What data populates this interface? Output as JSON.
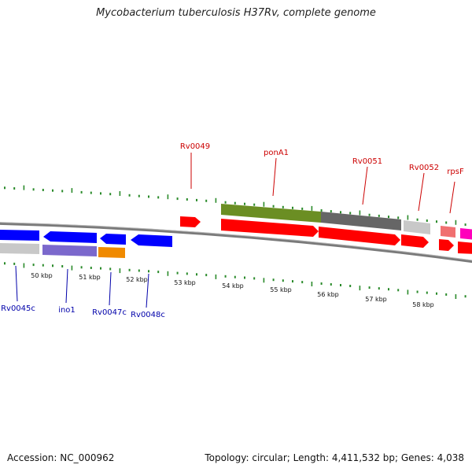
{
  "title": "Mycobacterium tuberculosis H37Rv, complete genome",
  "footer": {
    "accession": "Accession: NC_000962",
    "summary": "Topology: circular; Length: 4,411,532 bp; Genes: 4,038"
  },
  "colors": {
    "background": "#ffffff",
    "backbone": "#808080",
    "tick": "#2a8a2a",
    "forward_label": "#cc0000",
    "reverse_label": "#0000aa",
    "forward_gene": "#ff0000",
    "reverse_gene": "#0000ff"
  },
  "scale_labels": [
    "50 kbp",
    "51 kbp",
    "52 kbp",
    "53 kbp",
    "54 kbp",
    "55 kbp",
    "56 kbp",
    "57 kbp",
    "58 kbp"
  ],
  "forward_gene_labels": [
    "Rv0049",
    "ponA1",
    "Rv0051",
    "Rv0052",
    "rpsF"
  ],
  "reverse_gene_labels": [
    "Rv0045c",
    "ino1",
    "Rv0047c",
    "Rv0048c"
  ]
}
